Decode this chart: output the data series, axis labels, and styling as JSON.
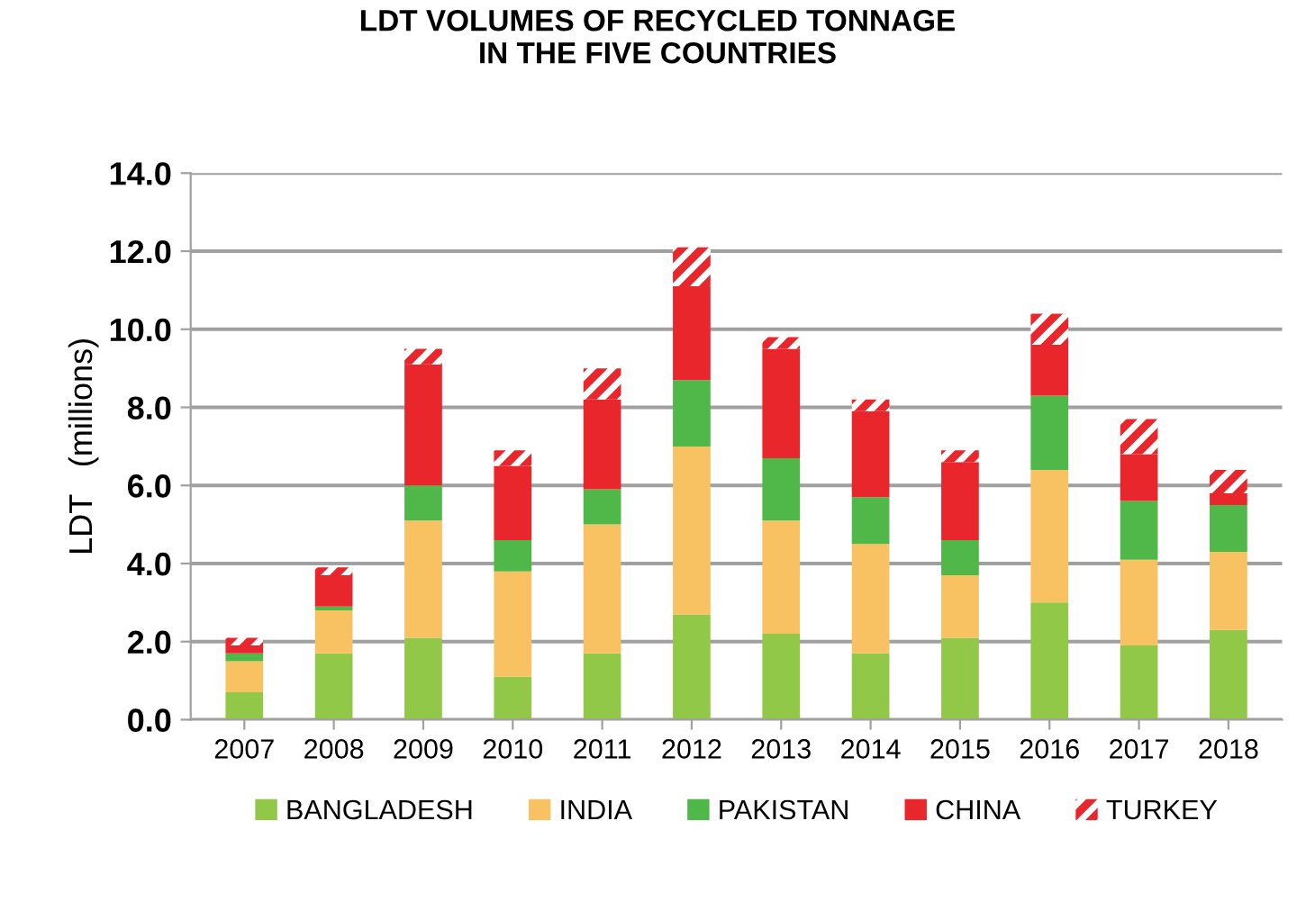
{
  "chart_data": {
    "type": "bar",
    "title": "LDT VOLUMES OF RECYCLED TONNAGE\nIN THE FIVE COUNTRIES",
    "ylabel": "LDT   (millions)",
    "categories": [
      "2007",
      "2008",
      "2009",
      "2010",
      "2011",
      "2012",
      "2013",
      "2014",
      "2015",
      "2016",
      "2017",
      "2018"
    ],
    "stacked": true,
    "series": [
      {
        "name": "BANGLADESH",
        "color": "#92c848",
        "values": [
          0.7,
          1.7,
          2.1,
          1.1,
          1.7,
          2.7,
          2.2,
          1.7,
          2.1,
          3.0,
          1.9,
          2.3
        ]
      },
      {
        "name": "INDIA",
        "color": "#f8c262",
        "values": [
          0.8,
          1.1,
          3.0,
          2.7,
          3.3,
          4.3,
          2.9,
          2.8,
          1.6,
          3.4,
          2.2,
          2.0
        ]
      },
      {
        "name": "PAKISTAN",
        "color": "#4fb848",
        "values": [
          0.2,
          0.1,
          0.9,
          0.8,
          0.9,
          1.7,
          1.6,
          1.2,
          0.9,
          1.9,
          1.5,
          1.2
        ]
      },
      {
        "name": "CHINA",
        "color": "#e8262b",
        "values": [
          0.2,
          0.8,
          3.1,
          1.9,
          2.3,
          2.4,
          2.8,
          2.2,
          2.0,
          1.3,
          1.2,
          0.3
        ]
      },
      {
        "name": "TURKEY",
        "color": "#e8262b",
        "values": [
          0.2,
          0.2,
          0.4,
          0.4,
          0.8,
          1.0,
          0.3,
          0.3,
          0.3,
          0.8,
          0.9,
          0.6
        ]
      }
    ],
    "ylim": [
      0,
      14
    ],
    "yticks": [
      {
        "value": 0,
        "label": "0.0"
      },
      {
        "value": 2,
        "label": "2.0"
      },
      {
        "value": 4,
        "label": "4.0"
      },
      {
        "value": 6,
        "label": "6.0"
      },
      {
        "value": 8,
        "label": "8.0"
      },
      {
        "value": 10,
        "label": "10.0"
      },
      {
        "value": 12,
        "label": "12.0"
      },
      {
        "value": 14,
        "label": "14.0"
      }
    ],
    "grid": "y",
    "legend": "bottom"
  }
}
